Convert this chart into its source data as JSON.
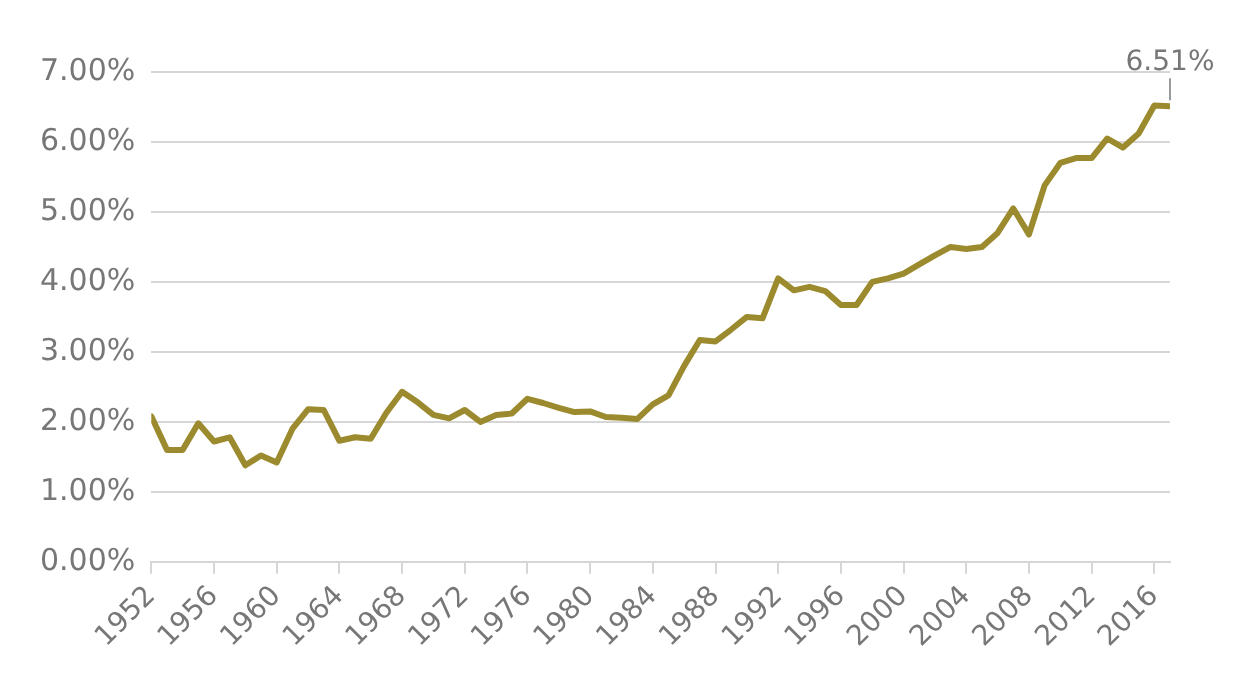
{
  "chart_data": {
    "type": "line",
    "grid": "y",
    "marker": "none",
    "line_style": "solid",
    "x": [
      1952,
      1953,
      1954,
      1955,
      1956,
      1957,
      1958,
      1959,
      1960,
      1961,
      1962,
      1963,
      1964,
      1965,
      1966,
      1967,
      1968,
      1969,
      1970,
      1971,
      1972,
      1973,
      1974,
      1975,
      1976,
      1977,
      1978,
      1979,
      1980,
      1981,
      1982,
      1983,
      1984,
      1985,
      1986,
      1987,
      1988,
      1989,
      1990,
      1991,
      1992,
      1993,
      1994,
      1995,
      1996,
      1997,
      1998,
      1999,
      2000,
      2001,
      2002,
      2003,
      2004,
      2005,
      2006,
      2007,
      2008,
      2009,
      2010,
      2011,
      2012,
      2013,
      2014,
      2015,
      2016,
      2017
    ],
    "series": [
      {
        "color": "#9c8a2e",
        "values": [
          2.08,
          1.6,
          1.6,
          1.98,
          1.72,
          1.78,
          1.38,
          1.52,
          1.42,
          1.9,
          2.18,
          2.17,
          1.73,
          1.78,
          1.76,
          2.13,
          2.43,
          2.28,
          2.1,
          2.05,
          2.17,
          2.0,
          2.1,
          2.12,
          2.33,
          2.27,
          2.2,
          2.14,
          2.15,
          2.07,
          2.06,
          2.04,
          2.25,
          2.38,
          2.8,
          3.17,
          3.15,
          3.32,
          3.5,
          3.48,
          4.05,
          3.88,
          3.93,
          3.87,
          3.67,
          3.67,
          4.0,
          4.05,
          4.12,
          4.25,
          4.38,
          4.5,
          4.47,
          4.5,
          4.7,
          5.05,
          4.68,
          5.38,
          5.7,
          5.77,
          5.77,
          6.05,
          5.92,
          6.12,
          6.52,
          6.51
        ]
      }
    ],
    "xlim": [
      1952,
      2017
    ],
    "xticks": [
      1952,
      1956,
      1960,
      1964,
      1968,
      1972,
      1976,
      1980,
      1984,
      1988,
      1992,
      1996,
      2000,
      2004,
      2008,
      2012,
      2016
    ],
    "ylim": [
      0,
      7
    ],
    "yticks": [
      {
        "value": 0,
        "label": "0.00%"
      },
      {
        "value": 1,
        "label": "1.00%"
      },
      {
        "value": 2,
        "label": "2.00%"
      },
      {
        "value": 3,
        "label": "3.00%"
      },
      {
        "value": 4,
        "label": "4.00%"
      },
      {
        "value": 5,
        "label": "5.00%"
      },
      {
        "value": 6,
        "label": "6.00%"
      },
      {
        "value": 7,
        "label": "7.00%"
      }
    ],
    "annotations": [
      {
        "text": "6.51%",
        "x": 2017,
        "y": 6.51
      }
    ]
  }
}
